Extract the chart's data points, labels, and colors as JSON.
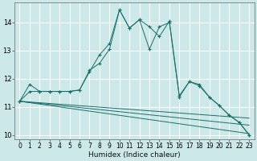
{
  "xlabel": "Humidex (Indice chaleur)",
  "bg_color": "#cce8e8",
  "grid_color": "#ffffff",
  "line_color": "#1a6e6a",
  "xlim": [
    -0.5,
    23.5
  ],
  "ylim": [
    9.85,
    14.7
  ],
  "yticks": [
    10,
    11,
    12,
    13,
    14
  ],
  "xticks": [
    0,
    1,
    2,
    3,
    4,
    5,
    6,
    7,
    8,
    9,
    10,
    11,
    12,
    13,
    14,
    15,
    16,
    17,
    18,
    19,
    20,
    21,
    22,
    23
  ],
  "curve1_x": [
    0,
    1,
    2,
    3,
    4,
    5,
    6,
    7,
    8,
    9,
    10,
    11,
    12,
    13,
    14,
    15,
    16,
    17,
    18,
    19,
    20,
    21,
    22,
    23
  ],
  "curve1_y": [
    11.2,
    11.8,
    11.55,
    11.55,
    11.55,
    11.55,
    11.6,
    12.25,
    12.85,
    13.25,
    14.45,
    13.8,
    14.1,
    13.85,
    13.5,
    14.05,
    11.4,
    11.9,
    11.8,
    11.35,
    11.05,
    10.7,
    10.45,
    10.0
  ],
  "curve2_x": [
    0,
    1,
    2,
    3,
    4,
    5,
    6,
    7,
    8,
    9,
    10,
    11,
    12,
    13,
    14,
    15,
    16,
    17,
    18,
    19,
    20,
    21,
    22,
    23
  ],
  "curve2_y": [
    11.2,
    11.55,
    11.55,
    11.55,
    11.55,
    11.55,
    11.6,
    12.3,
    12.55,
    13.05,
    14.45,
    13.8,
    14.1,
    13.05,
    13.85,
    14.0,
    11.35,
    11.9,
    11.75,
    11.35,
    11.05,
    10.7,
    10.45,
    10.0
  ],
  "line1_x": [
    0,
    23
  ],
  "line1_y": [
    11.2,
    10.05
  ],
  "line2_x": [
    0,
    23
  ],
  "line2_y": [
    11.2,
    10.35
  ],
  "line3_x": [
    0,
    23
  ],
  "line3_y": [
    11.2,
    10.6
  ]
}
